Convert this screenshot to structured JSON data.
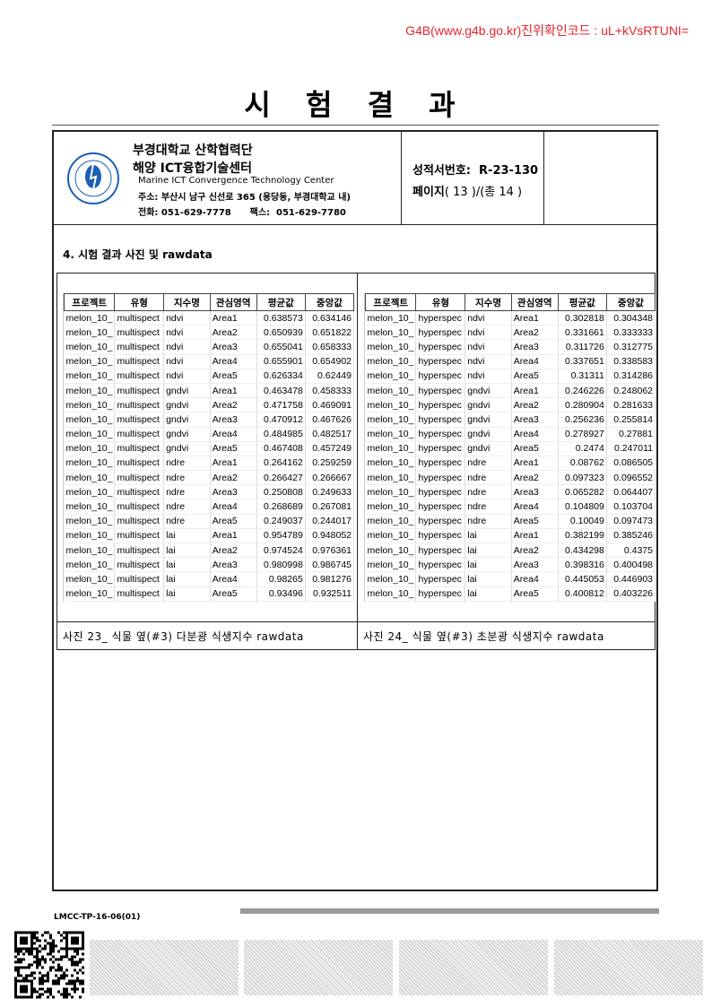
{
  "verification": "G4B(www.g4b.go.kr)진위확인코드 : uL+kVsRTUNI=",
  "title": "시 험 결 과",
  "header": {
    "org_line1": "부경대학교 산학협력단",
    "org_line2": "해양 ICT융합기술센터",
    "org_english": "Marine ICT Convergence Technology Center",
    "address": "주소: 부산시 남구 신선로 365 (용당동, 부경대학교 내)",
    "phone": "전화: 051-629-7778      팩스:  051-629-7780",
    "report_no": "성적서번호:  R-23-130",
    "page_label": "페이지",
    "page_value": "( 13 )/(총 14 )"
  },
  "section_title": "4. 시험 결과 사진 및 rawdata",
  "columns": [
    "프로젝트",
    "유형",
    "지수명",
    "관심영역",
    "평균값",
    "중앙값"
  ],
  "left_table": {
    "caption": "사진 23_ 식물 옆(#3) 다분광 식생지수 rawdata",
    "rows": [
      [
        "melon_10_",
        "multispect",
        "ndvi",
        "Area1",
        "0.638573",
        "0.634146"
      ],
      [
        "melon_10_",
        "multispect",
        "ndvi",
        "Area2",
        "0.650939",
        "0.651822"
      ],
      [
        "melon_10_",
        "multispect",
        "ndvi",
        "Area3",
        "0.655041",
        "0.658333"
      ],
      [
        "melon_10_",
        "multispect",
        "ndvi",
        "Area4",
        "0.655901",
        "0.654902"
      ],
      [
        "melon_10_",
        "multispect",
        "ndvi",
        "Area5",
        "0.626334",
        "0.62449"
      ],
      [
        "melon_10_",
        "multispect",
        "gndvi",
        "Area1",
        "0.463478",
        "0.458333"
      ],
      [
        "melon_10_",
        "multispect",
        "gndvi",
        "Area2",
        "0.471758",
        "0.469091"
      ],
      [
        "melon_10_",
        "multispect",
        "gndvi",
        "Area3",
        "0.470912",
        "0.467626"
      ],
      [
        "melon_10_",
        "multispect",
        "gndvi",
        "Area4",
        "0.484985",
        "0.482517"
      ],
      [
        "melon_10_",
        "multispect",
        "gndvi",
        "Area5",
        "0.467408",
        "0.457249"
      ],
      [
        "melon_10_",
        "multispect",
        "ndre",
        "Area1",
        "0.264162",
        "0.259259"
      ],
      [
        "melon_10_",
        "multispect",
        "ndre",
        "Area2",
        "0.266427",
        "0.266667"
      ],
      [
        "melon_10_",
        "multispect",
        "ndre",
        "Area3",
        "0.250808",
        "0.249633"
      ],
      [
        "melon_10_",
        "multispect",
        "ndre",
        "Area4",
        "0.268689",
        "0.267081"
      ],
      [
        "melon_10_",
        "multispect",
        "ndre",
        "Area5",
        "0.249037",
        "0.244017"
      ],
      [
        "melon_10_",
        "multispect",
        "lai",
        "Area1",
        "0.954789",
        "0.948052"
      ],
      [
        "melon_10_",
        "multispect",
        "lai",
        "Area2",
        "0.974524",
        "0.976361"
      ],
      [
        "melon_10_",
        "multispect",
        "lai",
        "Area3",
        "0.980998",
        "0.986745"
      ],
      [
        "melon_10_",
        "multispect",
        "lai",
        "Area4",
        "0.98265",
        "0.981276"
      ],
      [
        "melon_10_",
        "multispect",
        "lai",
        "Area5",
        "0.93496",
        "0.932511"
      ]
    ]
  },
  "right_table": {
    "caption": "사진 24_ 식물 옆(#3) 초분광 식생지수 rawdata",
    "rows": [
      [
        "melon_10_",
        "hyperspec",
        "ndvi",
        "Area1",
        "0.302818",
        "0.304348"
      ],
      [
        "melon_10_",
        "hyperspec",
        "ndvi",
        "Area2",
        "0.331661",
        "0.333333"
      ],
      [
        "melon_10_",
        "hyperspec",
        "ndvi",
        "Area3",
        "0.311726",
        "0.312775"
      ],
      [
        "melon_10_",
        "hyperspec",
        "ndvi",
        "Area4",
        "0.337651",
        "0.338583"
      ],
      [
        "melon_10_",
        "hyperspec",
        "ndvi",
        "Area5",
        "0.31311",
        "0.314286"
      ],
      [
        "melon_10_",
        "hyperspec",
        "gndvi",
        "Area1",
        "0.246226",
        "0.248062"
      ],
      [
        "melon_10_",
        "hyperspec",
        "gndvi",
        "Area2",
        "0.280904",
        "0.281633"
      ],
      [
        "melon_10_",
        "hyperspec",
        "gndvi",
        "Area3",
        "0.256236",
        "0.255814"
      ],
      [
        "melon_10_",
        "hyperspec",
        "gndvi",
        "Area4",
        "0.278927",
        "0.27881"
      ],
      [
        "melon_10_",
        "hyperspec",
        "gndvi",
        "Area5",
        "0.2474",
        "0.247011"
      ],
      [
        "melon_10_",
        "hyperspec",
        "ndre",
        "Area1",
        "0.08762",
        "0.086505"
      ],
      [
        "melon_10_",
        "hyperspec",
        "ndre",
        "Area2",
        "0.097323",
        "0.096552"
      ],
      [
        "melon_10_",
        "hyperspec",
        "ndre",
        "Area3",
        "0.065282",
        "0.064407"
      ],
      [
        "melon_10_",
        "hyperspec",
        "ndre",
        "Area4",
        "0.104809",
        "0.103704"
      ],
      [
        "melon_10_",
        "hyperspec",
        "ndre",
        "Area5",
        "0.10049",
        "0.097473"
      ],
      [
        "melon_10_",
        "hyperspec",
        "lai",
        "Area1",
        "0.382199",
        "0.385246"
      ],
      [
        "melon_10_",
        "hyperspec",
        "lai",
        "Area2",
        "0.434298",
        "0.4375"
      ],
      [
        "melon_10_",
        "hyperspec",
        "lai",
        "Area3",
        "0.398316",
        "0.400498"
      ],
      [
        "melon_10_",
        "hyperspec",
        "lai",
        "Area4",
        "0.445053",
        "0.446903"
      ],
      [
        "melon_10_",
        "hyperspec",
        "lai",
        "Area5",
        "0.400812",
        "0.403226"
      ]
    ]
  },
  "footer": {
    "form_code": "LMCC-TP-16-06(01)"
  },
  "colors": {
    "verification": "#e8232b",
    "logo_blue": "#1b5fb5"
  }
}
